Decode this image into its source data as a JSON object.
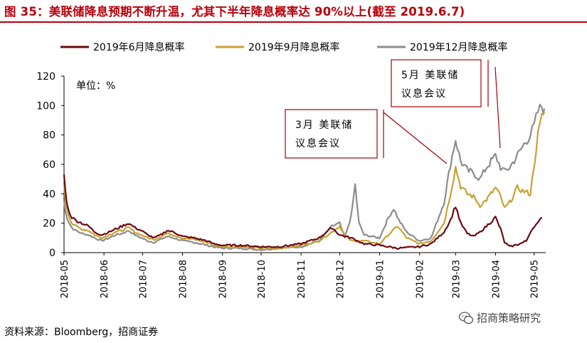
{
  "page_title": "图 35：美联储降息预期不断升温，尤其下半年降息概率达 90%以上(截至 2019.6.7)",
  "source": "资料来源：Bloomberg，招商证券",
  "brand": "招商策略研究",
  "chart_data": {
    "type": "line",
    "unit_label": "单位：%",
    "ylim": [
      0,
      120
    ],
    "yticks": [
      0,
      20,
      40,
      60,
      80,
      100,
      120
    ],
    "xlim": [
      "2018-05-01",
      "2019-05-10"
    ],
    "xticks": [
      "2018-05",
      "2018-06",
      "2018-07",
      "2018-08",
      "2018-09",
      "2018-10",
      "2018-11",
      "2018-12",
      "2019-01",
      "2019-02",
      "2019-03",
      "2019-04",
      "2019-05"
    ],
    "grid": false,
    "legend_position": "top",
    "series": [
      {
        "name": "2019年6月降息概率",
        "color": "#6b0a10",
        "points": [
          [
            "2018-05-01",
            53
          ],
          [
            "2018-05-02",
            42
          ],
          [
            "2018-05-04",
            30
          ],
          [
            "2018-05-07",
            24
          ],
          [
            "2018-05-10",
            22
          ],
          [
            "2018-05-15",
            20
          ],
          [
            "2018-05-20",
            18
          ],
          [
            "2018-05-25",
            14
          ],
          [
            "2018-05-30",
            12
          ],
          [
            "2018-06-05",
            14
          ],
          [
            "2018-06-10",
            16
          ],
          [
            "2018-06-15",
            18
          ],
          [
            "2018-06-20",
            20
          ],
          [
            "2018-06-25",
            17
          ],
          [
            "2018-06-30",
            15
          ],
          [
            "2018-07-05",
            12
          ],
          [
            "2018-07-10",
            10
          ],
          [
            "2018-07-15",
            12
          ],
          [
            "2018-07-20",
            15
          ],
          [
            "2018-07-25",
            14
          ],
          [
            "2018-08-01",
            11
          ],
          [
            "2018-08-10",
            10
          ],
          [
            "2018-08-20",
            8
          ],
          [
            "2018-08-25",
            6
          ],
          [
            "2018-09-01",
            5
          ],
          [
            "2018-09-15",
            5
          ],
          [
            "2018-10-01",
            4
          ],
          [
            "2018-10-15",
            4
          ],
          [
            "2018-11-01",
            6
          ],
          [
            "2018-11-15",
            10
          ],
          [
            "2018-11-25",
            17
          ],
          [
            "2018-12-01",
            12
          ],
          [
            "2018-12-10",
            10
          ],
          [
            "2018-12-20",
            6
          ],
          [
            "2019-01-01",
            5
          ],
          [
            "2019-01-15",
            3
          ],
          [
            "2019-02-01",
            4
          ],
          [
            "2019-02-10",
            6
          ],
          [
            "2019-02-20",
            14
          ],
          [
            "2019-02-25",
            22
          ],
          [
            "2019-03-01",
            32
          ],
          [
            "2019-03-05",
            20
          ],
          [
            "2019-03-10",
            13
          ],
          [
            "2019-03-15",
            11
          ],
          [
            "2019-03-20",
            14
          ],
          [
            "2019-03-25",
            18
          ],
          [
            "2019-04-01",
            24
          ],
          [
            "2019-04-05",
            16
          ],
          [
            "2019-04-08",
            7
          ],
          [
            "2019-04-12",
            4
          ],
          [
            "2019-04-20",
            6
          ],
          [
            "2019-04-25",
            8
          ],
          [
            "2019-04-28",
            14
          ],
          [
            "2019-05-01",
            18
          ],
          [
            "2019-05-04",
            20
          ],
          [
            "2019-05-07",
            24
          ]
        ]
      },
      {
        "name": "2019年9月降息概率",
        "color": "#c9a032",
        "points": [
          [
            "2018-05-01",
            45
          ],
          [
            "2018-05-02",
            36
          ],
          [
            "2018-05-04",
            27
          ],
          [
            "2018-05-07",
            20
          ],
          [
            "2018-05-10",
            18
          ],
          [
            "2018-05-15",
            16
          ],
          [
            "2018-05-20",
            15
          ],
          [
            "2018-05-25",
            12
          ],
          [
            "2018-05-30",
            10
          ],
          [
            "2018-06-05",
            12
          ],
          [
            "2018-06-10",
            14
          ],
          [
            "2018-06-15",
            15
          ],
          [
            "2018-06-20",
            17
          ],
          [
            "2018-06-25",
            14
          ],
          [
            "2018-06-30",
            12
          ],
          [
            "2018-07-05",
            10
          ],
          [
            "2018-07-10",
            9
          ],
          [
            "2018-07-15",
            11
          ],
          [
            "2018-07-20",
            13
          ],
          [
            "2018-07-25",
            12
          ],
          [
            "2018-08-01",
            10
          ],
          [
            "2018-08-10",
            9
          ],
          [
            "2018-08-20",
            7
          ],
          [
            "2018-08-25",
            5
          ],
          [
            "2018-09-01",
            4
          ],
          [
            "2018-09-15",
            4
          ],
          [
            "2018-10-01",
            3
          ],
          [
            "2018-10-15",
            3
          ],
          [
            "2018-11-01",
            5
          ],
          [
            "2018-11-15",
            8
          ],
          [
            "2018-11-25",
            14
          ],
          [
            "2018-12-01",
            18
          ],
          [
            "2018-12-05",
            12
          ],
          [
            "2018-12-10",
            8
          ],
          [
            "2018-12-20",
            8
          ],
          [
            "2019-01-01",
            6
          ],
          [
            "2019-01-10",
            14
          ],
          [
            "2019-01-15",
            18
          ],
          [
            "2019-01-22",
            10
          ],
          [
            "2019-02-01",
            6
          ],
          [
            "2019-02-10",
            8
          ],
          [
            "2019-02-20",
            20
          ],
          [
            "2019-02-25",
            40
          ],
          [
            "2019-03-01",
            58
          ],
          [
            "2019-03-05",
            45
          ],
          [
            "2019-03-10",
            40
          ],
          [
            "2019-03-15",
            38
          ],
          [
            "2019-03-20",
            32
          ],
          [
            "2019-03-25",
            36
          ],
          [
            "2019-04-01",
            44
          ],
          [
            "2019-04-05",
            38
          ],
          [
            "2019-04-08",
            30
          ],
          [
            "2019-04-12",
            34
          ],
          [
            "2019-04-18",
            44
          ],
          [
            "2019-04-22",
            42
          ],
          [
            "2019-04-28",
            40
          ],
          [
            "2019-05-01",
            60
          ],
          [
            "2019-05-04",
            80
          ],
          [
            "2019-05-07",
            92
          ],
          [
            "2019-05-09",
            96
          ]
        ]
      },
      {
        "name": "2019年12月降息概率",
        "color": "#8c8c8c",
        "points": [
          [
            "2018-05-01",
            35
          ],
          [
            "2018-05-02",
            28
          ],
          [
            "2018-05-04",
            22
          ],
          [
            "2018-05-07",
            17
          ],
          [
            "2018-05-10",
            15
          ],
          [
            "2018-05-15",
            13
          ],
          [
            "2018-05-20",
            12
          ],
          [
            "2018-05-25",
            10
          ],
          [
            "2018-05-30",
            8
          ],
          [
            "2018-06-05",
            10
          ],
          [
            "2018-06-10",
            12
          ],
          [
            "2018-06-15",
            13
          ],
          [
            "2018-06-20",
            15
          ],
          [
            "2018-06-25",
            12
          ],
          [
            "2018-06-30",
            10
          ],
          [
            "2018-07-05",
            8
          ],
          [
            "2018-07-10",
            7
          ],
          [
            "2018-07-15",
            9
          ],
          [
            "2018-07-20",
            11
          ],
          [
            "2018-07-25",
            10
          ],
          [
            "2018-08-01",
            8
          ],
          [
            "2018-08-10",
            7
          ],
          [
            "2018-08-20",
            5
          ],
          [
            "2018-08-25",
            4
          ],
          [
            "2018-09-01",
            3
          ],
          [
            "2018-09-15",
            3
          ],
          [
            "2018-10-01",
            2
          ],
          [
            "2018-10-15",
            3
          ],
          [
            "2018-11-01",
            4
          ],
          [
            "2018-11-15",
            8
          ],
          [
            "2018-11-25",
            18
          ],
          [
            "2018-12-01",
            20
          ],
          [
            "2018-12-05",
            10
          ],
          [
            "2018-12-10",
            25
          ],
          [
            "2018-12-13",
            46
          ],
          [
            "2018-12-16",
            20
          ],
          [
            "2018-12-20",
            12
          ],
          [
            "2019-01-01",
            10
          ],
          [
            "2019-01-08",
            24
          ],
          [
            "2019-01-12",
            30
          ],
          [
            "2019-01-16",
            22
          ],
          [
            "2019-01-22",
            14
          ],
          [
            "2019-02-01",
            8
          ],
          [
            "2019-02-10",
            10
          ],
          [
            "2019-02-20",
            34
          ],
          [
            "2019-02-25",
            60
          ],
          [
            "2019-03-01",
            77
          ],
          [
            "2019-03-05",
            62
          ],
          [
            "2019-03-10",
            56
          ],
          [
            "2019-03-15",
            54
          ],
          [
            "2019-03-20",
            50
          ],
          [
            "2019-03-25",
            58
          ],
          [
            "2019-04-01",
            66
          ],
          [
            "2019-04-05",
            58
          ],
          [
            "2019-04-08",
            55
          ],
          [
            "2019-04-12",
            58
          ],
          [
            "2019-04-18",
            66
          ],
          [
            "2019-04-22",
            72
          ],
          [
            "2019-04-28",
            80
          ],
          [
            "2019-05-01",
            86
          ],
          [
            "2019-05-04",
            96
          ],
          [
            "2019-05-07",
            99
          ],
          [
            "2019-05-09",
            98
          ]
        ]
      }
    ],
    "annotations": [
      {
        "lines": [
          "3月 美联储",
          "议息会议"
        ],
        "date": "2019-03-01",
        "value": 60
      },
      {
        "lines": [
          "5月  美联储",
          "议息会议"
        ],
        "date": "2019-05-01",
        "value": 70
      }
    ]
  }
}
